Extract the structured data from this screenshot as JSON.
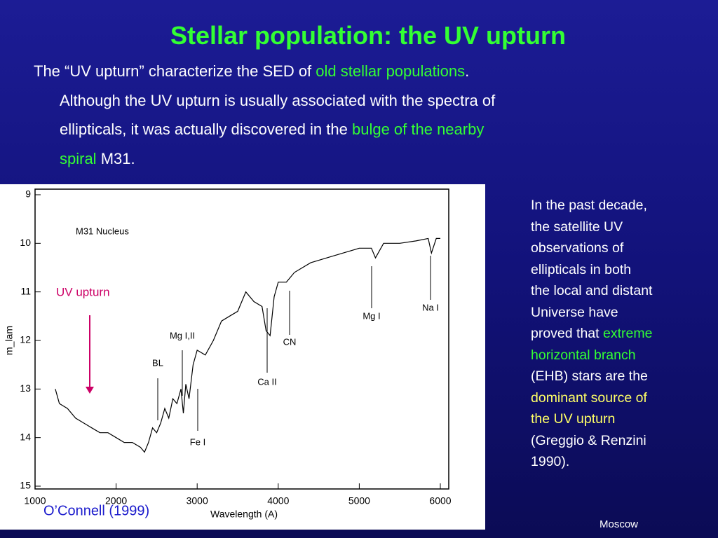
{
  "header": {
    "title": "Stellar population: the UV upturn"
  },
  "intro": {
    "lines": [
      [
        {
          "text": "The “UV upturn” characterize the SED of "
        },
        {
          "text": "old stellar populations",
          "color": "#33ff33"
        },
        {
          "text": "."
        }
      ],
      [
        {
          "text": "Although the UV upturn is usually associated with the spectra of"
        }
      ],
      [
        {
          "text": "ellipticals, it was actually discovered in the "
        },
        {
          "text": "bulge of the nearby",
          "color": "#33ff33"
        }
      ],
      [
        {
          "text": "spiral",
          "color": "#33ff33"
        },
        {
          "text": " M31."
        }
      ]
    ]
  },
  "side": {
    "lines": [
      [
        {
          "text": "In the past decade,"
        }
      ],
      [
        {
          "text": "the satellite UV"
        }
      ],
      [
        {
          "text": "observations of"
        }
      ],
      [
        {
          "text": "ellipticals in both"
        }
      ],
      [
        {
          "text": "the local and distant"
        }
      ],
      [
        {
          "text": "Universe have"
        }
      ],
      [
        {
          "text": "proved that "
        },
        {
          "text": "extreme",
          "color": "#33ff33"
        }
      ],
      [
        {
          "text": "horizontal branch",
          "color": "#33ff33"
        }
      ],
      [
        {
          "text": "(EHB) stars are the"
        }
      ],
      [
        {
          "text": "dominant source of",
          "color": "#ffff66"
        }
      ],
      [
        {
          "text": "the UV upturn",
          "color": "#ffff66"
        }
      ],
      [
        {
          "text": "(Greggio & Renzini"
        }
      ],
      [
        {
          "text": "1990)."
        }
      ]
    ]
  },
  "footer": {
    "place": "Moscow"
  },
  "chart_data": {
    "type": "line",
    "xlabel": "Wavelength (A)",
    "ylabel": "m_lam",
    "xlim": [
      1000,
      6000
    ],
    "ylim": [
      15,
      9
    ],
    "xticks": [
      1000,
      2000,
      3000,
      4000,
      5000,
      6000
    ],
    "yticks": [
      9,
      10,
      11,
      12,
      13,
      14,
      15
    ],
    "x": [
      1250,
      1300,
      1400,
      1500,
      1600,
      1700,
      1800,
      1900,
      2000,
      2100,
      2200,
      2300,
      2350,
      2400,
      2450,
      2500,
      2550,
      2600,
      2650,
      2700,
      2750,
      2800,
      2830,
      2860,
      2900,
      2950,
      3000,
      3100,
      3200,
      3300,
      3400,
      3500,
      3600,
      3700,
      3800,
      3850,
      3900,
      3950,
      4000,
      4100,
      4200,
      4400,
      4600,
      4800,
      5000,
      5150,
      5200,
      5300,
      5500,
      5700,
      5850,
      5890,
      5950,
      6000
    ],
    "series": [
      {
        "name": "M31 Nucleus",
        "color": "#000000",
        "values": [
          13.0,
          13.3,
          13.4,
          13.6,
          13.7,
          13.8,
          13.9,
          13.9,
          14.0,
          14.1,
          14.1,
          14.2,
          14.3,
          14.1,
          13.8,
          13.9,
          13.7,
          13.4,
          13.6,
          13.2,
          13.3,
          13.0,
          13.5,
          12.9,
          13.2,
          12.5,
          12.2,
          12.3,
          12.0,
          11.6,
          11.5,
          11.4,
          11.0,
          11.2,
          11.3,
          11.8,
          11.9,
          11.1,
          10.8,
          10.8,
          10.6,
          10.4,
          10.3,
          10.2,
          10.1,
          10.1,
          10.3,
          10.0,
          10.0,
          9.95,
          9.9,
          10.2,
          9.9,
          9.9
        ]
      }
    ],
    "annotations": [
      "BL",
      "Mg I,II",
      "Fe I",
      "CN",
      "Ca II",
      "Mg I",
      "Na I"
    ],
    "upturn_label": "UV upturn",
    "credit": "O’Connell (1999)"
  }
}
